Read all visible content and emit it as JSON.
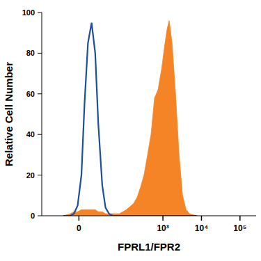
{
  "chart_data": {
    "type": "histogram_overlay",
    "x_label": "FPRL1/FPR2",
    "y_label": "Relative Cell Number",
    "x": [
      -14,
      -7,
      -4,
      -1,
      2,
      4.5,
      7.5,
      11,
      15,
      19,
      25,
      31,
      39,
      48,
      74,
      113,
      172,
      213,
      262,
      323,
      399,
      491,
      606,
      746,
      920,
      1134,
      1286,
      1457,
      1724,
      2125,
      2620,
      3230,
      3990,
      4910,
      7460
    ],
    "series": [
      {
        "type": "line",
        "color": "#1f4e9c",
        "values": [
          0,
          0,
          1,
          5,
          20,
          55,
          85,
          95,
          80,
          45,
          15,
          4,
          1,
          0,
          0,
          0,
          0,
          0,
          0,
          0,
          0,
          0,
          0,
          0,
          0,
          0,
          0,
          0,
          0,
          0,
          0,
          0,
          0,
          0,
          0
        ]
      },
      {
        "type": "area",
        "color": "#f58426",
        "values": [
          0,
          1,
          2,
          2,
          3,
          3,
          3,
          3,
          3,
          2,
          2,
          1,
          1,
          1,
          1,
          3,
          6,
          9,
          14,
          20,
          30,
          40,
          58,
          62,
          72,
          85,
          92,
          96,
          85,
          60,
          30,
          10,
          3,
          1,
          0
        ]
      }
    ],
    "xlim": [
      -60,
      262144
    ],
    "xticks": [
      0,
      {
        "value": 1000,
        "label": "10³"
      },
      {
        "value": 10000,
        "label": "10⁴"
      },
      {
        "value": 100000,
        "label": "10⁵"
      }
    ],
    "ylim": [
      0,
      100
    ],
    "yticks": [
      0,
      20,
      40,
      60,
      80,
      100
    ]
  }
}
